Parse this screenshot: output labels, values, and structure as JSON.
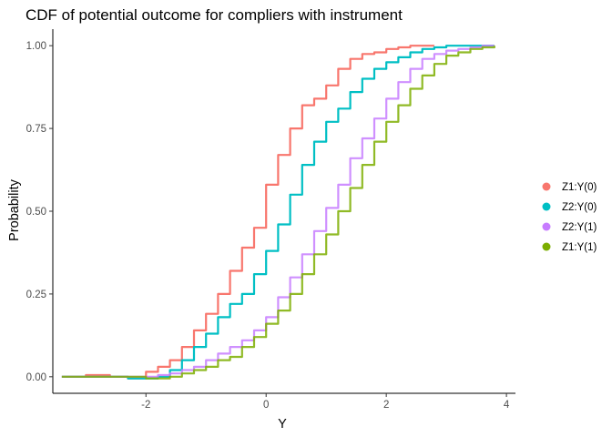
{
  "chart_data": {
    "type": "line",
    "title": "CDF of potential outcome for compliers with instrument",
    "xlabel": "Y",
    "ylabel": "Probability",
    "xlim": [
      -3.55,
      4.15
    ],
    "ylim": [
      -0.05,
      1.05
    ],
    "xticks": [
      -2,
      0,
      2,
      4
    ],
    "xtick_labels": [
      "-2",
      "0",
      "2",
      "4"
    ],
    "yticks": [
      0,
      0.25,
      0.5,
      0.75,
      1
    ],
    "ytick_labels": [
      "0.00",
      "0.25",
      "0.50",
      "0.75",
      "1.00"
    ],
    "grid": false,
    "legend_position": "right",
    "series": [
      {
        "name": "Z1:Y(0)",
        "color": "#F8766D",
        "x": [
          -3.4,
          -3.0,
          -2.6,
          -2.3,
          -2.0,
          -1.8,
          -1.6,
          -1.4,
          -1.2,
          -1.0,
          -0.8,
          -0.6,
          -0.4,
          -0.2,
          0.0,
          0.2,
          0.4,
          0.6,
          0.8,
          1.0,
          1.2,
          1.4,
          1.6,
          1.8,
          2.0,
          2.2,
          2.4,
          2.6,
          2.8
        ],
        "y": [
          0.0,
          0.005,
          0.0,
          -0.005,
          0.015,
          0.03,
          0.05,
          0.09,
          0.14,
          0.19,
          0.25,
          0.32,
          0.39,
          0.45,
          0.58,
          0.67,
          0.75,
          0.82,
          0.84,
          0.88,
          0.93,
          0.96,
          0.975,
          0.98,
          0.99,
          0.995,
          1.0,
          1.0,
          1.0
        ]
      },
      {
        "name": "Z2:Y(0)",
        "color": "#00BFC4",
        "x": [
          -3.4,
          -3.0,
          -2.6,
          -2.3,
          -2.0,
          -1.8,
          -1.6,
          -1.4,
          -1.2,
          -1.0,
          -0.8,
          -0.6,
          -0.4,
          -0.2,
          0.0,
          0.2,
          0.4,
          0.6,
          0.8,
          1.0,
          1.2,
          1.4,
          1.6,
          1.8,
          2.0,
          2.2,
          2.4,
          2.6,
          2.8,
          3.0,
          3.2,
          3.8
        ],
        "y": [
          0.0,
          0.0,
          0.0,
          -0.005,
          -0.005,
          0.0,
          0.02,
          0.05,
          0.09,
          0.13,
          0.18,
          0.22,
          0.25,
          0.31,
          0.38,
          0.46,
          0.55,
          0.64,
          0.71,
          0.77,
          0.81,
          0.86,
          0.9,
          0.93,
          0.95,
          0.965,
          0.98,
          0.99,
          0.995,
          1.0,
          1.0,
          1.0
        ]
      },
      {
        "name": "Z2:Y(1)",
        "color": "#C77CFF",
        "x": [
          -3.4,
          -3.0,
          -2.6,
          -2.3,
          -2.0,
          -1.8,
          -1.6,
          -1.4,
          -1.2,
          -1.0,
          -0.8,
          -0.6,
          -0.4,
          -0.2,
          0.0,
          0.2,
          0.4,
          0.6,
          0.8,
          1.0,
          1.2,
          1.4,
          1.6,
          1.8,
          2.0,
          2.2,
          2.4,
          2.6,
          2.8,
          3.0,
          3.2,
          3.4,
          3.6,
          3.8
        ],
        "y": [
          0.0,
          0.0,
          0.0,
          0.0,
          0.0,
          0.005,
          0.01,
          0.02,
          0.03,
          0.05,
          0.07,
          0.09,
          0.11,
          0.14,
          0.18,
          0.24,
          0.3,
          0.37,
          0.44,
          0.51,
          0.58,
          0.66,
          0.72,
          0.78,
          0.84,
          0.89,
          0.93,
          0.96,
          0.975,
          0.985,
          0.99,
          0.995,
          1.0,
          1.0
        ]
      },
      {
        "name": "Z1:Y(1)",
        "color": "#7CAE00",
        "x": [
          -3.4,
          -3.0,
          -2.6,
          -2.3,
          -2.0,
          -1.8,
          -1.6,
          -1.4,
          -1.2,
          -1.0,
          -0.8,
          -0.6,
          -0.4,
          -0.2,
          0.0,
          0.2,
          0.4,
          0.6,
          0.8,
          1.0,
          1.2,
          1.4,
          1.6,
          1.8,
          2.0,
          2.2,
          2.4,
          2.6,
          2.8,
          3.0,
          3.2,
          3.4,
          3.6,
          3.8
        ],
        "y": [
          0.0,
          0.0,
          0.0,
          0.0,
          -0.005,
          -0.005,
          0.0,
          0.01,
          0.02,
          0.03,
          0.05,
          0.06,
          0.09,
          0.12,
          0.16,
          0.2,
          0.25,
          0.31,
          0.37,
          0.43,
          0.5,
          0.57,
          0.64,
          0.71,
          0.77,
          0.82,
          0.87,
          0.91,
          0.945,
          0.97,
          0.98,
          0.99,
          0.995,
          1.0
        ]
      }
    ]
  }
}
